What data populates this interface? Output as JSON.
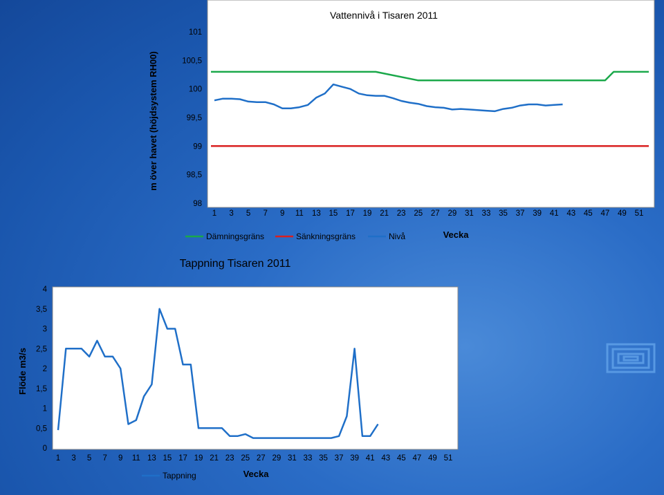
{
  "chart_data": [
    {
      "type": "line",
      "title": "Vattennivå i Tisaren 2011",
      "xlabel": "Vecka",
      "ylabel": "m över havet (höjdsystem RH00)",
      "ylim": [
        98,
        101
      ],
      "y_ticks": [
        "98",
        "98,5",
        "99",
        "99,5",
        "100",
        "100,5",
        "101"
      ],
      "x_ticks": [
        "1",
        "3",
        "5",
        "7",
        "9",
        "11",
        "13",
        "15",
        "17",
        "19",
        "21",
        "23",
        "25",
        "27",
        "29",
        "31",
        "33",
        "35",
        "37",
        "39",
        "41",
        "43",
        "45",
        "47",
        "49",
        "51"
      ],
      "legend": "bottom",
      "grid": false,
      "series": [
        {
          "name": "Dämningsgräns",
          "color": "#1aa84a",
          "x": [
            1,
            20,
            25,
            47,
            48,
            53
          ],
          "y": [
            100.3,
            100.3,
            100.15,
            100.15,
            100.3,
            100.3
          ]
        },
        {
          "name": "Sänkningsgräns",
          "color": "#d92020",
          "x": [
            1,
            53
          ],
          "y": [
            99.0,
            99.0
          ]
        },
        {
          "name": "Nivå",
          "color": "#1f6fc8",
          "x": [
            1,
            2,
            3,
            4,
            5,
            6,
            7,
            8,
            9,
            10,
            11,
            12,
            13,
            14,
            15,
            16,
            17,
            18,
            19,
            20,
            21,
            22,
            23,
            24,
            25,
            26,
            27,
            28,
            29,
            30,
            31,
            32,
            33,
            34,
            35,
            36,
            37,
            38,
            39,
            40,
            41,
            42
          ],
          "y": [
            99.8,
            99.83,
            99.83,
            99.82,
            99.78,
            99.77,
            99.77,
            99.73,
            99.66,
            99.66,
            99.68,
            99.72,
            99.85,
            99.92,
            100.08,
            100.04,
            100.0,
            99.92,
            99.89,
            99.88,
            99.88,
            99.84,
            99.79,
            99.76,
            99.74,
            99.7,
            99.68,
            99.67,
            99.64,
            99.65,
            99.64,
            99.63,
            99.62,
            99.61,
            99.65,
            99.67,
            99.71,
            99.73,
            99.73,
            99.71,
            99.72,
            99.73
          ]
        }
      ]
    },
    {
      "type": "line",
      "title": "Tappning Tisaren 2011",
      "xlabel": "Vecka",
      "ylabel": "Flöde m3/s",
      "ylim": [
        0,
        4
      ],
      "y_ticks": [
        "0",
        "0,5",
        "1",
        "1,5",
        "2",
        "2,5",
        "3",
        "3,5",
        "4"
      ],
      "x_ticks": [
        "1",
        "3",
        "5",
        "7",
        "9",
        "11",
        "13",
        "15",
        "17",
        "19",
        "21",
        "23",
        "25",
        "27",
        "29",
        "31",
        "33",
        "35",
        "37",
        "39",
        "41",
        "43",
        "45",
        "47",
        "49",
        "51"
      ],
      "legend": "bottom-left",
      "grid": false,
      "series": [
        {
          "name": "Tappning",
          "color": "#1f6fc8",
          "x": [
            1,
            2,
            3,
            4,
            5,
            6,
            7,
            8,
            9,
            10,
            11,
            12,
            13,
            14,
            15,
            16,
            17,
            18,
            19,
            20,
            21,
            22,
            23,
            24,
            25,
            26,
            27,
            28,
            29,
            30,
            31,
            32,
            33,
            34,
            35,
            36,
            37,
            38,
            39,
            40,
            41,
            42
          ],
          "y": [
            0.45,
            2.5,
            2.5,
            2.5,
            2.3,
            2.7,
            2.3,
            2.3,
            2.0,
            0.6,
            0.7,
            1.3,
            1.6,
            3.5,
            3.0,
            3.0,
            2.1,
            2.1,
            0.5,
            0.5,
            0.5,
            0.5,
            0.3,
            0.3,
            0.35,
            0.25,
            0.25,
            0.25,
            0.25,
            0.25,
            0.25,
            0.25,
            0.25,
            0.25,
            0.25,
            0.25,
            0.3,
            0.8,
            2.5,
            0.3,
            0.3,
            0.6
          ]
        }
      ]
    }
  ]
}
